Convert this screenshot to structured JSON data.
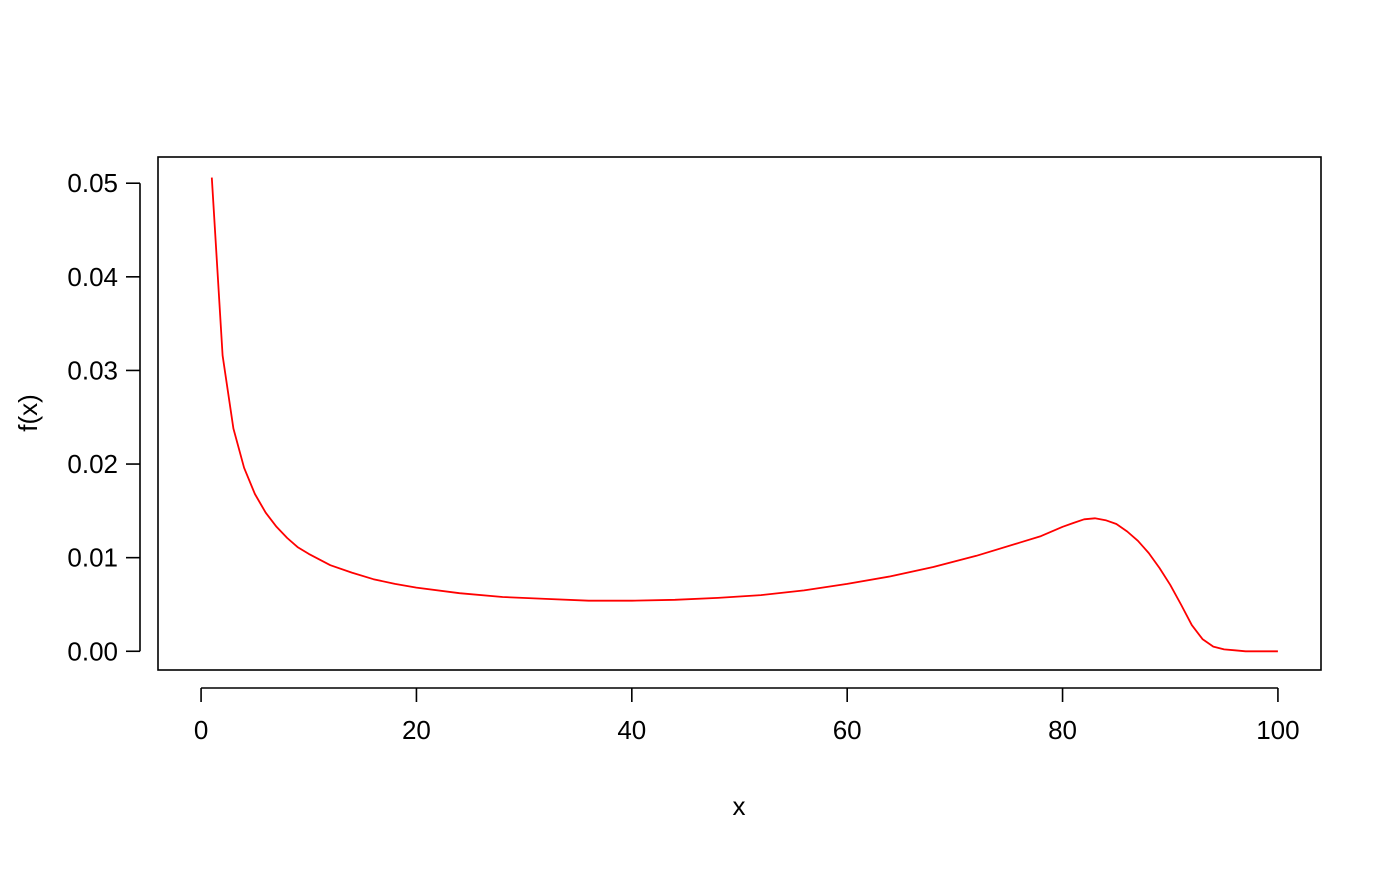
{
  "chart_data": {
    "type": "line",
    "title": "",
    "xlabel": "x",
    "ylabel": "f(x)",
    "xlim": [
      -4,
      104
    ],
    "ylim": [
      -0.002,
      0.0528
    ],
    "x_ticks": [
      0,
      20,
      40,
      60,
      80,
      100
    ],
    "x_tick_labels": [
      "0",
      "20",
      "40",
      "60",
      "80",
      "100"
    ],
    "y_ticks": [
      0,
      0.01,
      0.02,
      0.03,
      0.04,
      0.05
    ],
    "y_tick_labels": [
      "0.00",
      "0.01",
      "0.02",
      "0.03",
      "0.04",
      "0.05"
    ],
    "grid": false,
    "series": [
      {
        "color": "#ff0000",
        "x": [
          1,
          2,
          3,
          4,
          5,
          6,
          7,
          8,
          9,
          10,
          12,
          14,
          16,
          18,
          20,
          24,
          28,
          32,
          36,
          40,
          44,
          48,
          52,
          56,
          60,
          64,
          68,
          72,
          76,
          78,
          80,
          81,
          82,
          83,
          84,
          85,
          86,
          87,
          88,
          89,
          90,
          91,
          92,
          93,
          94,
          95,
          96,
          97,
          98,
          100
        ],
        "y": [
          0.0506,
          0.0316,
          0.0238,
          0.0196,
          0.0168,
          0.0148,
          0.0133,
          0.0121,
          0.0111,
          0.0104,
          0.0092,
          0.0084,
          0.0077,
          0.0072,
          0.0068,
          0.0062,
          0.0058,
          0.0056,
          0.0054,
          0.0054,
          0.0055,
          0.0057,
          0.006,
          0.0065,
          0.0072,
          0.008,
          0.009,
          0.0102,
          0.0116,
          0.0123,
          0.0133,
          0.0137,
          0.0141,
          0.0142,
          0.014,
          0.0136,
          0.0128,
          0.0118,
          0.0105,
          0.0089,
          0.0071,
          0.005,
          0.0028,
          0.0013,
          0.0005,
          0.0002,
          0.0001,
          0.0,
          0.0,
          0.0
        ]
      }
    ]
  }
}
